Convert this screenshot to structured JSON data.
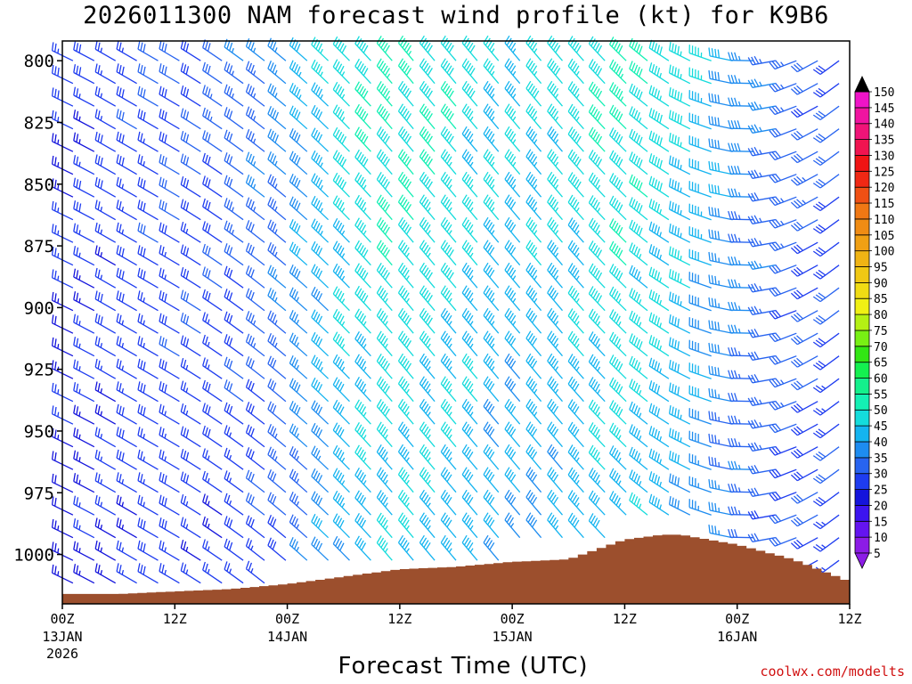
{
  "chart_data": {
    "type": "wind-barb-time-height",
    "title": "2026011300 NAM forecast wind profile (kt) for K9B6",
    "xlabel": "Forecast Time (UTC)",
    "ylabel": "",
    "y_ticks": [
      800,
      825,
      850,
      875,
      900,
      925,
      950,
      975,
      1000
    ],
    "y_range": [
      792,
      1020
    ],
    "x_range_hours": [
      0,
      84
    ],
    "x_ticks": [
      {
        "hour": 0,
        "label": "00Z",
        "sub": "13JAN",
        "sub2": "2026"
      },
      {
        "hour": 12,
        "label": "12Z",
        "sub": "",
        "sub2": ""
      },
      {
        "hour": 24,
        "label": "00Z",
        "sub": "14JAN",
        "sub2": ""
      },
      {
        "hour": 36,
        "label": "12Z",
        "sub": "",
        "sub2": ""
      },
      {
        "hour": 48,
        "label": "00Z",
        "sub": "15JAN",
        "sub2": ""
      },
      {
        "hour": 60,
        "label": "12Z",
        "sub": "",
        "sub2": ""
      },
      {
        "hour": 72,
        "label": "00Z",
        "sub": "16JAN",
        "sub2": ""
      },
      {
        "hour": 84,
        "label": "12Z",
        "sub": "",
        "sub2": ""
      }
    ],
    "wind_speed_time_keys_hours": [
      0,
      6,
      12,
      18,
      24,
      30,
      36,
      42,
      48,
      54,
      60,
      66,
      72,
      78,
      84
    ],
    "wind_speed_low_kt": [
      22,
      25,
      27,
      25,
      30,
      40,
      45,
      42,
      38,
      40,
      44,
      40,
      33,
      30,
      27
    ],
    "wind_speed_high_kt": [
      26,
      28,
      30,
      32,
      38,
      48,
      52,
      50,
      45,
      48,
      52,
      48,
      40,
      33,
      30
    ],
    "wind_dir_deg": [
      295,
      300,
      300,
      305,
      310,
      315,
      320,
      320,
      320,
      320,
      315,
      300,
      280,
      250,
      230
    ],
    "surface_pressure_keys_hours": [
      0,
      6,
      12,
      18,
      24,
      30,
      36,
      42,
      48,
      54,
      60,
      64,
      66,
      72,
      78,
      84
    ],
    "surface_pressure_hpa": [
      1016,
      1016,
      1015,
      1014,
      1012,
      1009,
      1006,
      1005,
      1003,
      1002,
      994,
      992,
      992,
      996,
      1002,
      1011
    ],
    "colorbar": {
      "labels": [
        "5",
        "10",
        "15",
        "20",
        "25",
        "30",
        "35",
        "40",
        "45",
        "50",
        "55",
        "60",
        "65",
        "70",
        "75",
        "80",
        "85",
        "90",
        "95",
        "100",
        "105",
        "110",
        "115",
        "120",
        "125",
        "130",
        "135",
        "140",
        "145",
        "150"
      ],
      "colors": [
        "#8c1ce6",
        "#6414f0",
        "#3c14f0",
        "#1414dc",
        "#1e3cf0",
        "#2864f0",
        "#1e8cf0",
        "#14b4f0",
        "#14dcdc",
        "#14f0b4",
        "#14f08c",
        "#14f050",
        "#32e614",
        "#78f014",
        "#b4f014",
        "#f0f014",
        "#f0dc14",
        "#f0c814",
        "#f0b414",
        "#f0a014",
        "#f08c14",
        "#f07814",
        "#f05014",
        "#f02814",
        "#f01414",
        "#f01450",
        "#f01478",
        "#f014a0",
        "#f014c8",
        "#f014f0"
      ],
      "end_colors": {
        "top": "#000000",
        "bottom": "#8c1ce6"
      }
    },
    "terrain_color": "#9c4f2d"
  },
  "credit": "coolwx.com/modelts"
}
